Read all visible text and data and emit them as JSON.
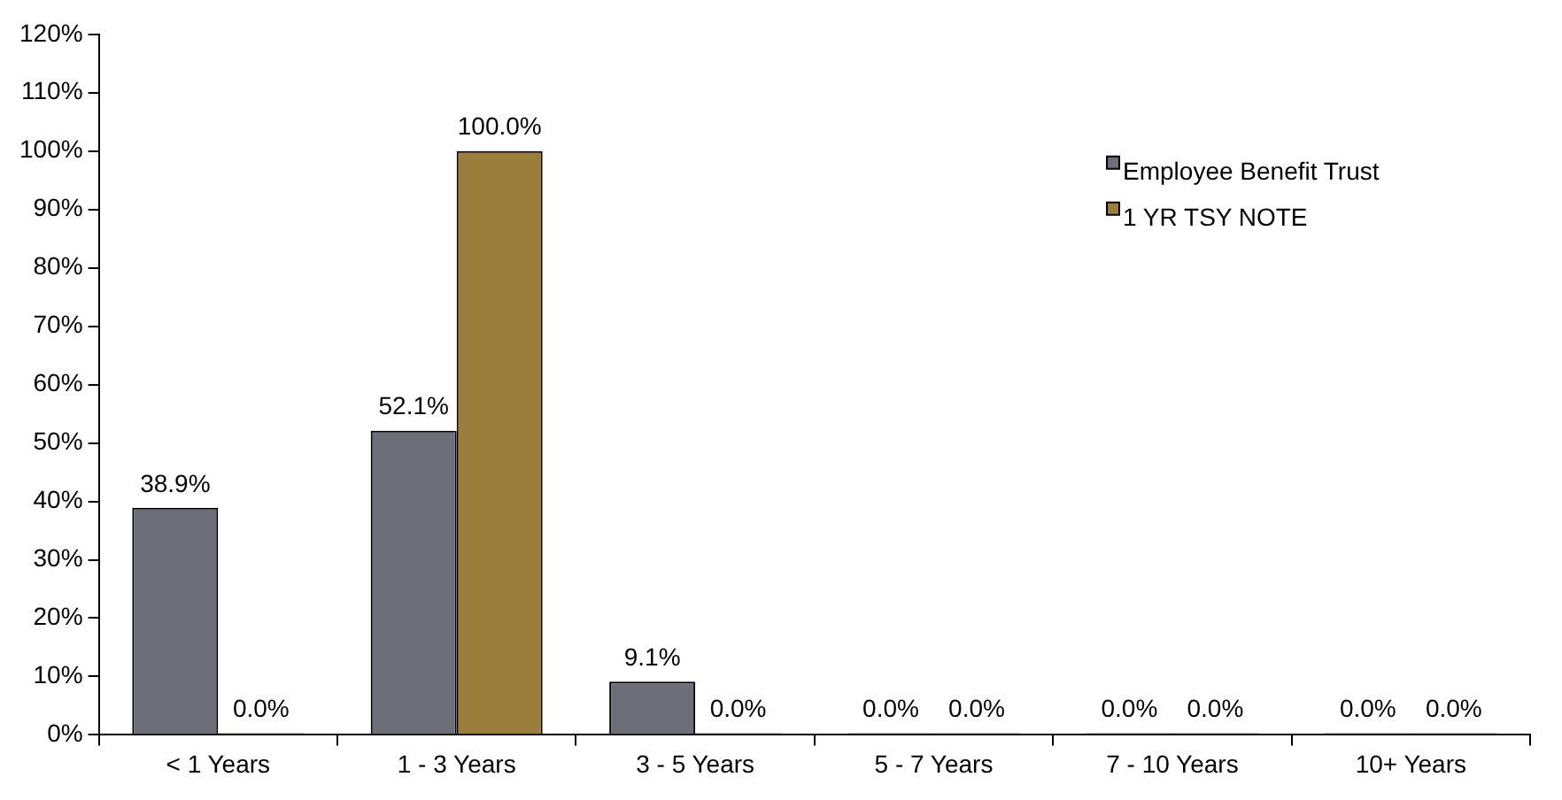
{
  "chart_data": {
    "type": "bar",
    "categories": [
      "< 1 Years",
      "1 - 3 Years",
      "3 - 5 Years",
      "5 - 7 Years",
      "7 - 10 Years",
      "10+ Years"
    ],
    "series": [
      {
        "name": "Employee Benefit Trust",
        "color": "#6d6e78",
        "values": [
          38.9,
          52.1,
          9.1,
          0,
          0,
          0
        ],
        "value_labels": [
          "38.9%",
          "52.1%",
          "9.1%",
          "0.0%",
          "0.0%",
          "0.0%"
        ]
      },
      {
        "name": "1 YR TSY NOTE",
        "color": "#9c7e3c",
        "values": [
          0,
          100,
          0,
          0,
          0,
          0
        ],
        "value_labels": [
          "0.0%",
          "100.0%",
          "0.0%",
          "0.0%",
          "0.0%",
          "0.0%"
        ]
      }
    ],
    "ylim": [
      0,
      120
    ],
    "yticks": [
      {
        "value": 0,
        "label": "0%"
      },
      {
        "value": 10,
        "label": "10%"
      },
      {
        "value": 20,
        "label": "20%"
      },
      {
        "value": 30,
        "label": "30%"
      },
      {
        "value": 40,
        "label": "40%"
      },
      {
        "value": 50,
        "label": "50%"
      },
      {
        "value": 60,
        "label": "60%"
      },
      {
        "value": 70,
        "label": "70%"
      },
      {
        "value": 80,
        "label": "80%"
      },
      {
        "value": 90,
        "label": "90%"
      },
      {
        "value": 100,
        "label": "100%"
      },
      {
        "value": 110,
        "label": "110%"
      },
      {
        "value": 120,
        "label": "120%"
      }
    ],
    "grid": false,
    "legend": "top right"
  }
}
